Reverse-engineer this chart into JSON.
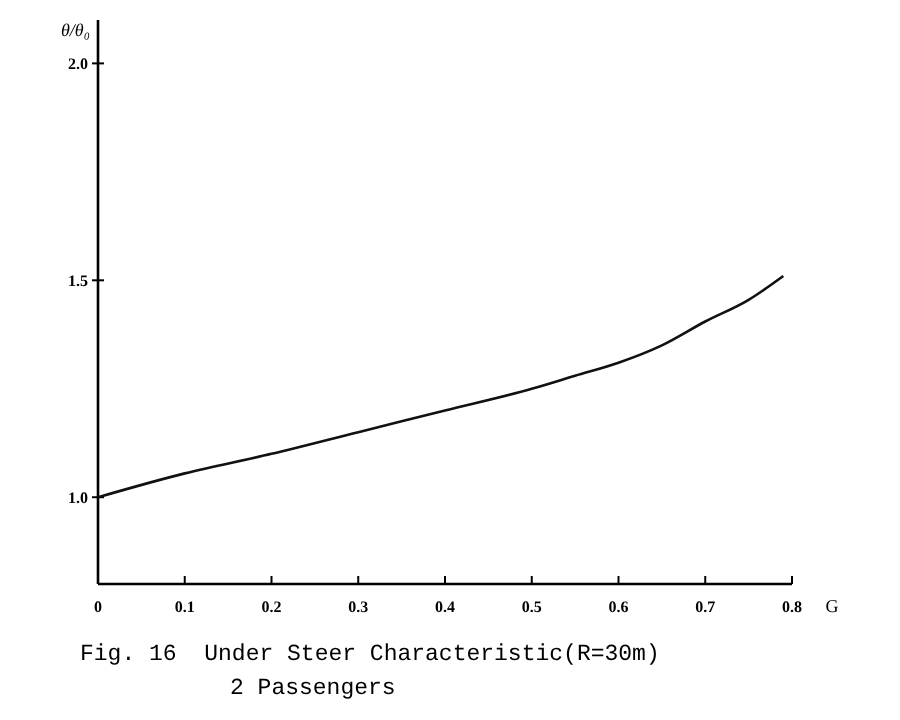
{
  "chart_data": {
    "type": "line",
    "xlabel": "G",
    "ylabel": "θ/θ₀",
    "annotations": [
      "Fig. 16  Under Steer Characteristic(R=30m)\n2 Passengers"
    ],
    "x": [
      0,
      0.1,
      0.2,
      0.3,
      0.4,
      0.5,
      0.55,
      0.6,
      0.65,
      0.7,
      0.75,
      0.79
    ],
    "series": [
      {
        "color": "#111111",
        "values": [
          1.0,
          1.055,
          1.1,
          1.15,
          1.2,
          1.25,
          1.28,
          1.31,
          1.35,
          1.405,
          1.455,
          1.51
        ]
      }
    ],
    "xlim": [
      0,
      0.8
    ],
    "xticks": [
      0,
      0.1,
      0.2,
      0.3,
      0.4,
      0.5,
      0.6,
      0.7,
      0.8
    ],
    "ylim": [
      0.8,
      2.1
    ],
    "yticks": [
      {
        "value": 1,
        "label": "1.0"
      },
      1.5,
      {
        "value": 2,
        "label": "2.0"
      }
    ],
    "grid": false,
    "marker": "none",
    "line_style": "solid"
  }
}
